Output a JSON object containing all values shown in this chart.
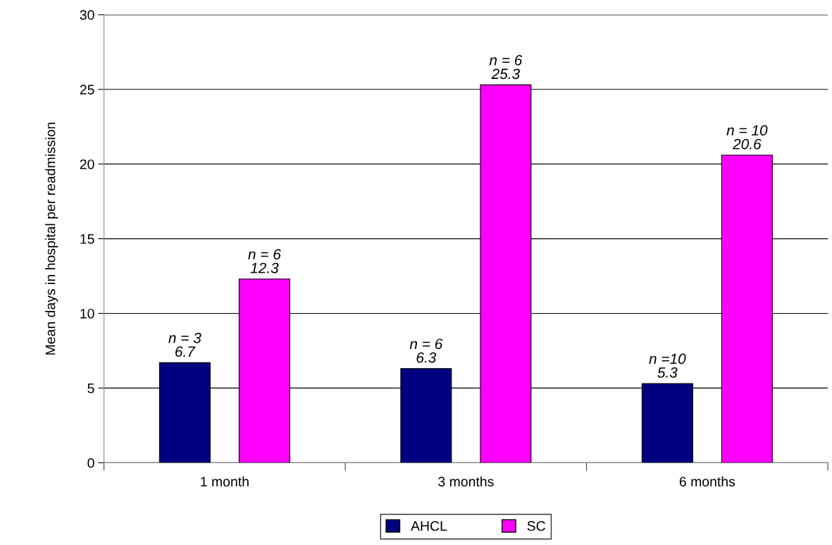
{
  "chart_data": {
    "type": "bar",
    "ylabel": "Mean days in hospital per readmission",
    "categories": [
      "1 month",
      "3 months",
      "6 months"
    ],
    "series": [
      {
        "name": "AHCL",
        "color": "#000080",
        "values": [
          6.7,
          6.3,
          5.3
        ],
        "value_labels": [
          "n = 3\n6.7",
          "n = 6\n6.3",
          "n =10\n5.3"
        ]
      },
      {
        "name": "SC",
        "color": "#ff00ff",
        "values": [
          12.3,
          25.3,
          20.6
        ],
        "value_labels": [
          "n = 6\n12.3",
          "n = 6\n25.3",
          "n = 10\n20.6"
        ]
      }
    ],
    "ylim": [
      0,
      30
    ],
    "yticks": [
      0,
      5,
      10,
      15,
      20,
      25,
      30
    ],
    "grid": "y",
    "legend": "bottom"
  }
}
